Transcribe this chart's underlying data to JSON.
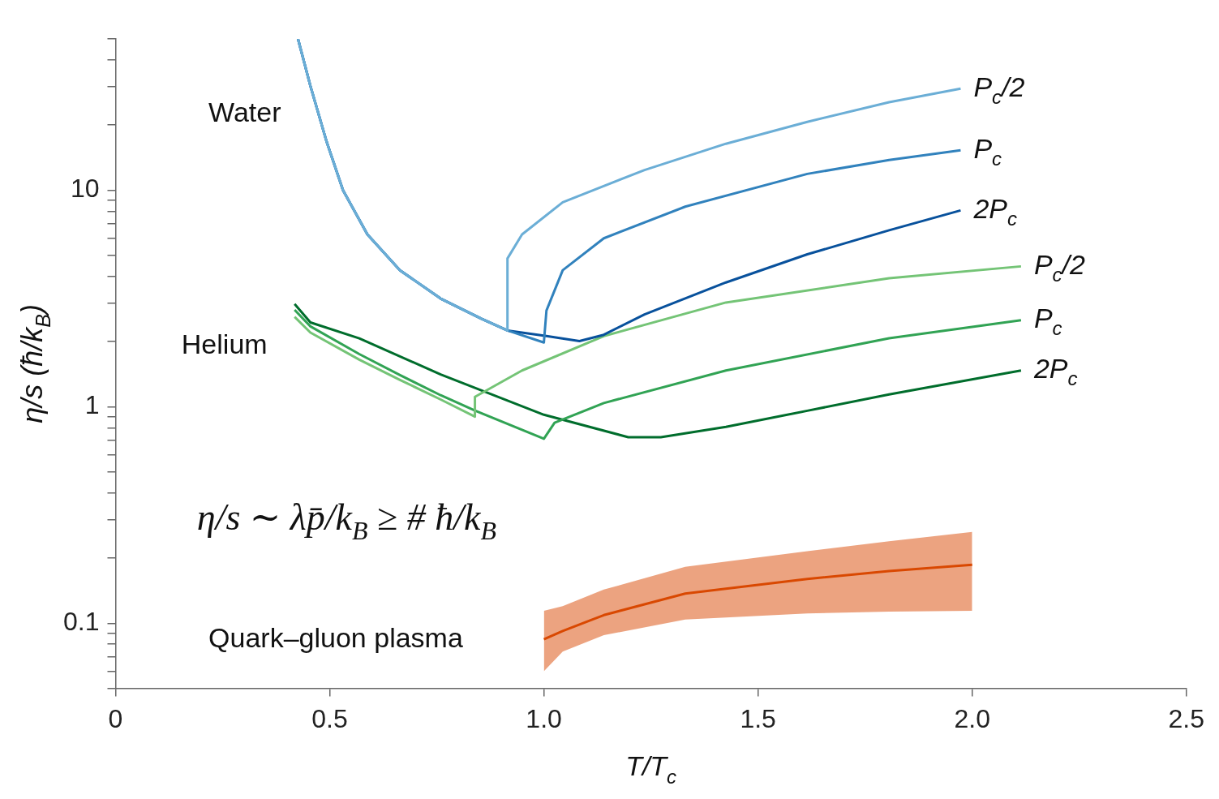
{
  "chart_data": {
    "type": "line",
    "xlabel": "T/T$_{c}$",
    "ylabel": "η/s (ħ/k$_{B}$)",
    "log": "y",
    "xlim": [
      0,
      2.5
    ],
    "ylim": [
      0.05,
      50
    ],
    "xticks": [
      0,
      0.5,
      {
        "value": 1,
        "label": "1.0"
      },
      1.5,
      {
        "value": 2,
        "label": "2.0"
      },
      2.5
    ],
    "yticks": [
      {
        "value": 0.05,
        "label": null
      },
      {
        "value": 0.06,
        "label": null
      },
      {
        "value": 0.07,
        "label": null
      },
      {
        "value": 0.08,
        "label": null
      },
      {
        "value": 0.09,
        "label": null
      },
      0.1,
      {
        "value": 0.2,
        "label": null
      },
      {
        "value": 0.3,
        "label": null
      },
      {
        "value": 0.4,
        "label": null
      },
      {
        "value": 0.5,
        "label": null
      },
      {
        "value": 0.6,
        "label": null
      },
      {
        "value": 0.7,
        "label": null
      },
      {
        "value": 0.8,
        "label": null
      },
      {
        "value": 0.9,
        "label": null
      },
      1,
      {
        "value": 2,
        "label": null
      },
      {
        "value": 3,
        "label": null
      },
      {
        "value": 4,
        "label": null
      },
      {
        "value": 5,
        "label": null
      },
      {
        "value": 6,
        "label": null
      },
      {
        "value": 7,
        "label": null
      },
      {
        "value": 8,
        "label": null
      },
      {
        "value": 9,
        "label": null
      },
      10,
      {
        "value": 20,
        "label": null
      },
      {
        "value": 30,
        "label": null
      },
      {
        "value": 40,
        "label": null
      },
      {
        "value": 50,
        "label": null
      }
    ],
    "grid": false,
    "legend": false,
    "marker": "none",
    "annotations": [
      "Water",
      "Helium",
      "η/s ∼ λp̄/k$_{B}$ ≥ # ħ/k$_{B}$",
      "Quark–gluon plasma"
    ],
    "series": [
      {
        "name": "P$_{c}$/2",
        "color": "#6baed6",
        "x": [
          0.426,
          0.455,
          0.493,
          0.531,
          0.588,
          0.664,
          0.759,
          0.854,
          0.915,
          0.915,
          0.949,
          1.044,
          1.235,
          1.425,
          1.615,
          1.806,
          1.973
        ],
        "values": [
          50,
          30.3,
          16.7,
          10,
          6.25,
          4.27,
          3.16,
          2.55,
          2.25,
          4.84,
          6.25,
          8.8,
          12.4,
          16.4,
          20.7,
          25.5,
          29.5
        ]
      },
      {
        "name": "P$_{c}$",
        "color": "#3182bd",
        "x": [
          0.426,
          0.455,
          0.493,
          0.531,
          0.588,
          0.664,
          0.759,
          0.854,
          0.915,
          1.0,
          1.006,
          1.044,
          1.14,
          1.33,
          1.615,
          1.806,
          1.973
        ],
        "values": [
          50,
          30.3,
          16.7,
          10,
          6.25,
          4.27,
          3.16,
          2.55,
          2.25,
          1.98,
          2.78,
          4.27,
          6.0,
          8.4,
          11.9,
          13.8,
          15.3
        ]
      },
      {
        "name": "2P$_{c}$",
        "color": "#08519c",
        "x": [
          0.426,
          0.455,
          0.493,
          0.531,
          0.588,
          0.664,
          0.759,
          0.854,
          0.915,
          1.006,
          1.083,
          1.14,
          1.235,
          1.425,
          1.615,
          1.806,
          1.973
        ],
        "values": [
          50,
          30.3,
          16.7,
          10,
          6.25,
          4.27,
          3.16,
          2.55,
          2.25,
          2.12,
          2.01,
          2.15,
          2.67,
          3.75,
          5.06,
          6.53,
          8.07
        ]
      },
      {
        "name": "P$_{c}$/2",
        "color": "#74c476",
        "x": [
          0.418,
          0.455,
          0.569,
          0.664,
          0.759,
          0.839,
          0.839,
          0.949,
          1.14,
          1.425,
          1.806,
          2.114
        ],
        "values": [
          2.6,
          2.2,
          1.65,
          1.33,
          1.08,
          0.9,
          1.11,
          1.47,
          2.12,
          3.03,
          3.92,
          4.45
        ]
      },
      {
        "name": "P$_{c}$",
        "color": "#31a354",
        "x": [
          0.418,
          0.455,
          0.569,
          0.664,
          0.759,
          0.839,
          1.0,
          1.025,
          1.14,
          1.425,
          1.806,
          2.114
        ],
        "values": [
          2.8,
          2.35,
          1.75,
          1.4,
          1.13,
          0.96,
          0.711,
          0.843,
          1.04,
          1.47,
          2.07,
          2.51
        ]
      },
      {
        "name": "2P$_{c}$",
        "color": "#006d2c",
        "x": [
          0.418,
          0.455,
          0.569,
          0.759,
          1.0,
          1.197,
          1.273,
          1.425,
          1.615,
          1.806,
          2.114
        ],
        "values": [
          2.98,
          2.45,
          2.07,
          1.41,
          0.918,
          0.723,
          0.723,
          0.807,
          0.958,
          1.14,
          1.47
        ]
      },
      {
        "color": "#d94801",
        "x": [
          1.0,
          1.044,
          1.14,
          1.33,
          1.615,
          1.806,
          2.0
        ],
        "values": [
          0.0843,
          0.092,
          0.109,
          0.137,
          0.16,
          0.174,
          0.186
        ],
        "lower": [
          0.06,
          0.074,
          0.088,
          0.104,
          0.111,
          0.113,
          0.114
        ],
        "upper": [
          0.114,
          0.12,
          0.143,
          0.182,
          0.215,
          0.239,
          0.264
        ]
      }
    ]
  }
}
